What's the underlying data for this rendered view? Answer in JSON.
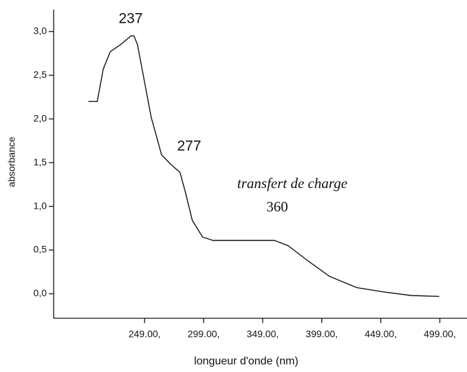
{
  "chart_data": {
    "type": "line",
    "x_label": "longueur d'onde (nm)",
    "y_label": "absorbance",
    "annotations": [
      "237",
      "277",
      "transfert de charge",
      "360"
    ],
    "x": [
      201.4,
      208.9,
      214,
      220,
      228.6,
      237.4,
      240,
      243,
      249,
      254.6,
      263.4,
      272,
      279,
      283.6,
      289.4,
      298,
      306.9,
      336,
      359,
      370.6,
      388,
      405.5,
      428.8,
      452,
      475,
      498.4
    ],
    "values": [
      2.2,
      2.2,
      2.57,
      2.77,
      2.85,
      2.95,
      2.95,
      2.85,
      2.42,
      2.02,
      1.59,
      1.47,
      1.39,
      1.16,
      0.84,
      0.65,
      0.61,
      0.61,
      0.61,
      0.55,
      0.37,
      0.2,
      0.07,
      0.02,
      -0.02,
      -0.03
    ],
    "color": "#111111",
    "xlim": [
      172,
      522
    ],
    "xticks": [
      {
        "value": 249,
        "label": "249.00,"
      },
      {
        "value": 299,
        "label": "299.00,"
      },
      {
        "value": 349,
        "label": "349.00,"
      },
      {
        "value": 399,
        "label": "399.00,"
      },
      {
        "value": 449,
        "label": "449.00,"
      },
      {
        "value": 499,
        "label": "499.00,"
      }
    ],
    "ylim": [
      -0.28,
      3.25
    ],
    "yticks": [
      {
        "value": 0,
        "label": "0,0"
      },
      {
        "value": 0.5,
        "label": "0,5"
      },
      {
        "value": 1,
        "label": "1,0"
      },
      {
        "value": 1.5,
        "label": "1,5"
      },
      {
        "value": 2,
        "label": "2,0"
      },
      {
        "value": 2.5,
        "label": "2,5"
      },
      {
        "value": 3,
        "label": "3,0"
      }
    ],
    "grid": false
  }
}
